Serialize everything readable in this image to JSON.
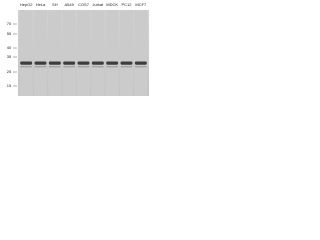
{
  "lanes": [
    "HepG2",
    "HeLa",
    "SH",
    "A549",
    "COS7",
    "Jurkat",
    "MDCK",
    "PC12",
    "MCF7"
  ],
  "markers": [
    "70",
    "55",
    "40",
    "35",
    "25",
    "15"
  ]
}
